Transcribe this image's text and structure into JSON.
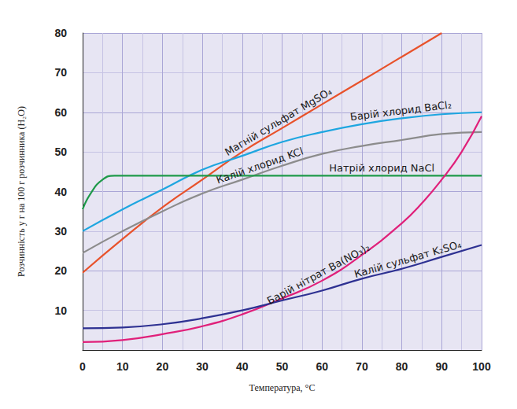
{
  "chart_data": {
    "type": "line",
    "x_label": "Температура, °C",
    "y_label": "Розчинність у г на 100 г розчинника (H₂O)",
    "xlim": [
      0,
      100
    ],
    "xticks": [
      0,
      10,
      20,
      30,
      40,
      50,
      60,
      70,
      80,
      90,
      100
    ],
    "ylim": [
      0,
      80
    ],
    "yticks": [
      10,
      20,
      30,
      40,
      50,
      60,
      70,
      80
    ],
    "grid": true,
    "series": [
      {
        "name": "Магній сульфат MgSO₄",
        "color": "#e8522b",
        "x": [
          0,
          10,
          20,
          30,
          40,
          50,
          60,
          70,
          80,
          90
        ],
        "values": [
          19.5,
          28,
          36,
          43,
          50,
          56,
          62,
          68,
          74,
          80
        ]
      },
      {
        "name": "Барій хлорид BaCl₂",
        "color": "#1ea6e0",
        "x": [
          0,
          10,
          20,
          30,
          40,
          50,
          60,
          70,
          80,
          90,
          100
        ],
        "values": [
          30,
          35.5,
          40.5,
          45.5,
          49,
          52.5,
          55,
          57,
          58.5,
          59.5,
          60
        ]
      },
      {
        "name": "Калій хлорид KCl",
        "color": "#8c8c8c",
        "x": [
          0,
          10,
          20,
          30,
          40,
          50,
          60,
          70,
          80,
          90,
          100
        ],
        "values": [
          24.5,
          30,
          35,
          39.5,
          43,
          46.5,
          49.5,
          51.5,
          53,
          54.5,
          55
        ]
      },
      {
        "name": "Натрій хлорид NaCl",
        "color": "#1f9a4a",
        "x": [
          0,
          2,
          5,
          8,
          10,
          100
        ],
        "values": [
          35.5,
          39.5,
          43,
          44,
          44,
          44
        ]
      },
      {
        "name": "Барій нітрат Ba(NO₃)₂",
        "color": "#e0207a",
        "x": [
          0,
          10,
          20,
          30,
          40,
          50,
          60,
          70,
          80,
          85,
          90,
          95,
          100
        ],
        "values": [
          2,
          2.5,
          4,
          6,
          9,
          13,
          17.5,
          24,
          32,
          37,
          43,
          50,
          59
        ]
      },
      {
        "name": "Калій сульфат K₂SO₄",
        "color": "#2e3192",
        "x": [
          0,
          10,
          20,
          30,
          40,
          50,
          60,
          70,
          80,
          90,
          100
        ],
        "values": [
          5.5,
          5.7,
          6.5,
          8,
          10,
          12.5,
          15,
          18,
          20.5,
          23.5,
          26.5
        ]
      }
    ]
  }
}
